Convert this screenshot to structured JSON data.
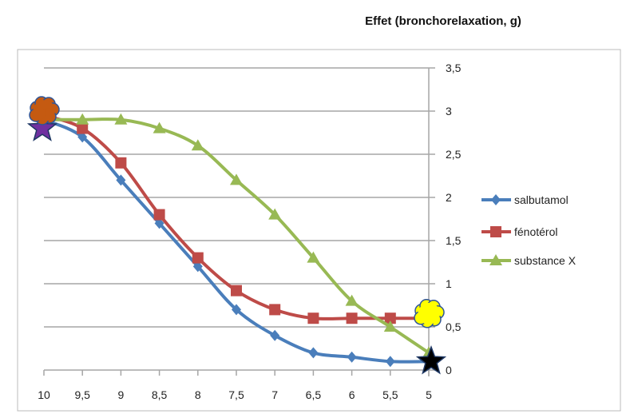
{
  "chart_data": {
    "type": "line",
    "title": "Effet (bronchorelaxation, g)",
    "xlabel": "",
    "ylabel": "",
    "x": [
      10,
      9.5,
      9,
      8.5,
      8,
      7.5,
      7,
      6.5,
      6,
      5.5,
      5
    ],
    "x_tick_labels": [
      "10",
      "9,5",
      "9",
      "8,5",
      "8",
      "7,5",
      "7",
      "6,5",
      "6",
      "5,5",
      "5"
    ],
    "x_reversed": true,
    "ylim": [
      0,
      3.5
    ],
    "y_tick_labels": [
      "0",
      "0,5",
      "1",
      "1,5",
      "2",
      "2,5",
      "3",
      "3,5"
    ],
    "y_axis_side": "right",
    "grid": "horizontal",
    "legend": "right",
    "series": [
      {
        "name": "salbutamol",
        "marker": "diamond",
        "color": "#4a7ebb",
        "values": [
          2.9,
          2.7,
          2.2,
          1.7,
          1.2,
          0.7,
          0.4,
          0.2,
          0.15,
          0.1,
          0.1
        ]
      },
      {
        "name": "fénotérol",
        "marker": "square",
        "color": "#be4b48",
        "values": [
          2.95,
          2.8,
          2.4,
          1.8,
          1.3,
          0.92,
          0.7,
          0.6,
          0.6,
          0.6,
          0.6
        ]
      },
      {
        "name": "substance X",
        "marker": "triangle",
        "color": "#98b954",
        "values": [
          2.9,
          2.9,
          2.9,
          2.8,
          2.6,
          2.2,
          1.8,
          1.3,
          0.8,
          0.5,
          0.2
        ]
      }
    ],
    "annotations": [
      {
        "shape": "star",
        "color": "#7030a0",
        "x": 10,
        "y": 2.8
      },
      {
        "shape": "cloud",
        "color": "#c55a11",
        "x": 10,
        "y": 3.0
      },
      {
        "shape": "cloud",
        "color": "#ffff00",
        "x": 5,
        "y": 0.65
      },
      {
        "shape": "star",
        "color": "#000000",
        "x": 5,
        "y": 0.1
      }
    ]
  }
}
